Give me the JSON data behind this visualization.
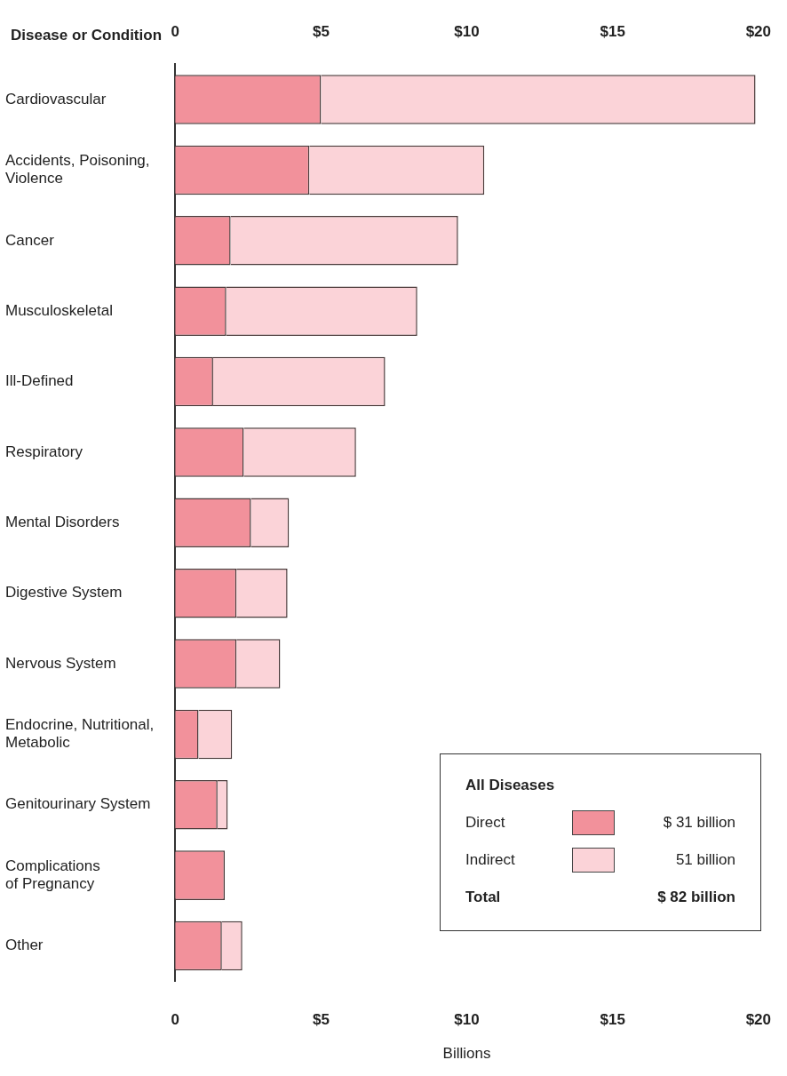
{
  "chart_data": {
    "type": "bar",
    "orientation": "horizontal",
    "stacked": true,
    "ylabel": "Disease or Condition",
    "xlabel": "Billions",
    "legend_title": "All Diseases",
    "legend": "bottom right",
    "categories": [
      "Cardiovascular",
      "Accidents, Poisoning,\nViolence",
      "Cancer",
      "Musculoskeletal",
      "Ill-Defined",
      "Respiratory",
      "Mental Disorders",
      "Digestive System",
      "Nervous System",
      "Endocrine, Nutritional,\nMetabolic",
      "Genitourinary System",
      "Complications\nof Pregnancy",
      "Other"
    ],
    "series": [
      {
        "name": "Direct",
        "color": "#f2919b",
        "values": [
          5.0,
          4.6,
          1.9,
          1.75,
          1.3,
          2.35,
          2.6,
          2.1,
          2.1,
          0.8,
          1.45,
          1.7,
          1.6
        ]
      },
      {
        "name": "Indirect",
        "color": "#fbd3d8",
        "values": [
          14.9,
          6.0,
          7.8,
          6.55,
          5.9,
          3.85,
          1.3,
          1.75,
          1.5,
          1.15,
          0.35,
          0,
          0.7
        ]
      }
    ],
    "xlim": [
      0,
      20
    ],
    "xticks": [
      0,
      {
        "value": 5,
        "label": "$5"
      },
      {
        "value": 10,
        "label": "$10"
      },
      {
        "value": 15,
        "label": "$15"
      },
      {
        "value": 20,
        "label": "$20"
      }
    ],
    "x2lim": [
      0,
      20
    ],
    "x2ticks": [
      0,
      {
        "value": 5,
        "label": "$5"
      },
      {
        "value": 10,
        "label": "$10"
      },
      {
        "value": 15,
        "label": "$15"
      },
      {
        "value": 20,
        "label": "$20"
      }
    ],
    "annotations": [
      "$ 31 billion",
      "51 billion",
      "Total",
      "$ 82 billion"
    ],
    "grid": false
  }
}
